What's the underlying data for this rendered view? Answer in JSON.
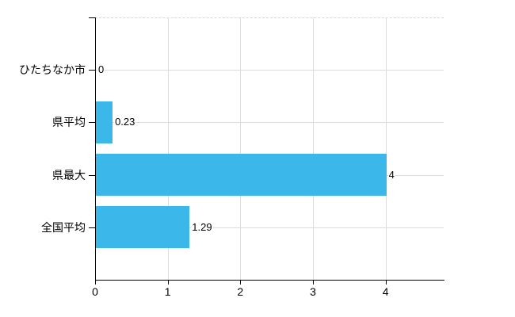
{
  "page": {
    "background": "#ffffff"
  },
  "chart_data": {
    "type": "bar",
    "orientation": "horizontal",
    "title": "",
    "xlabel": "",
    "ylabel": "",
    "categories": [
      "ひたちなか市",
      "県平均",
      "県最大",
      "全国平均"
    ],
    "values": [
      0,
      0.23,
      4,
      1.29
    ],
    "value_labels": [
      "0",
      "0.23",
      "4",
      "1.29"
    ],
    "x_tick_values": [
      0,
      1,
      2,
      3,
      4
    ],
    "x_tick_labels": [
      "0",
      "1",
      "2",
      "3",
      "4"
    ],
    "xlim": [
      0,
      4.8
    ],
    "grid": true,
    "legend": false,
    "colors": {
      "bar": "#3cb7ea",
      "gridline": "#dcdcdc",
      "plot_top_border": "#d8d8d8",
      "axis": "#000000",
      "text": "#000000"
    }
  }
}
